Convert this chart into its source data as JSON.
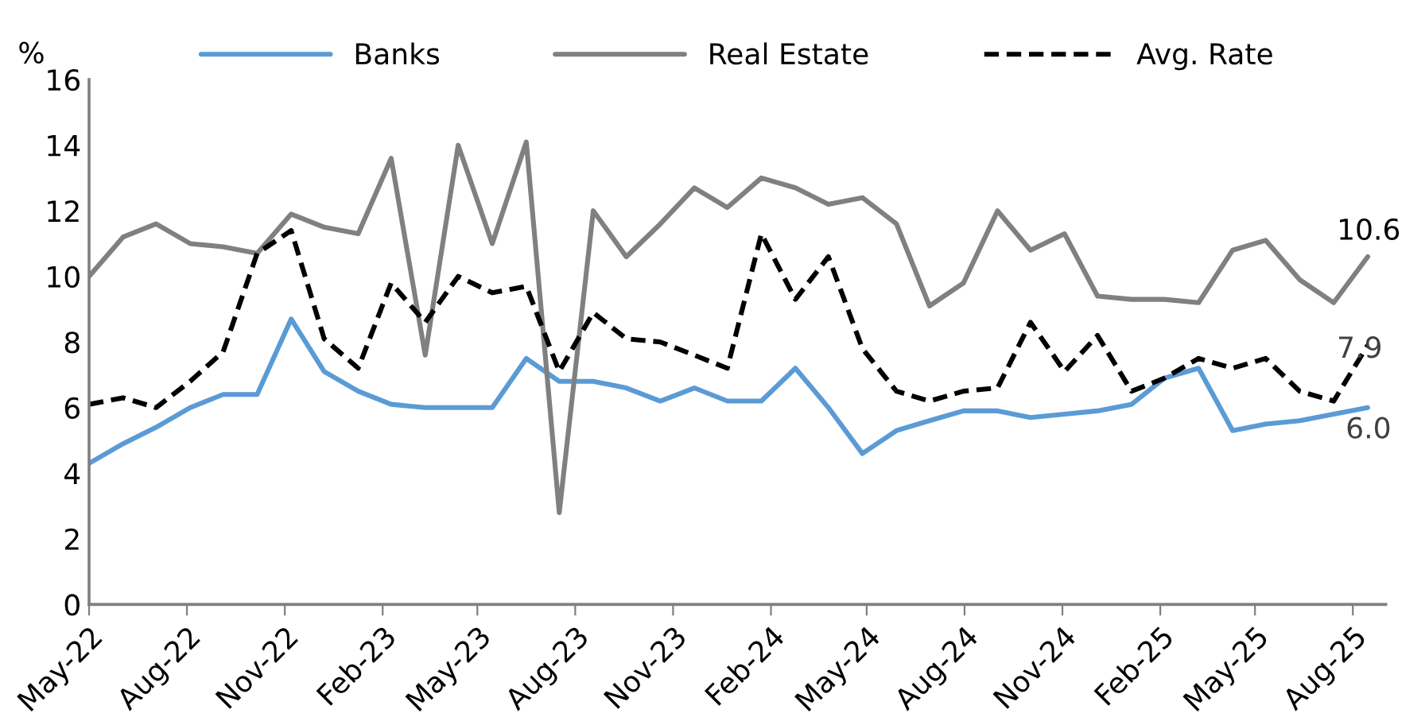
{
  "chart_data": {
    "type": "line",
    "ylabel": "%",
    "x": [
      "2022-05-01",
      "2022-06-02",
      "2022-07-03",
      "2022-08-04",
      "2022-09-04",
      "2022-10-06",
      "2022-11-07",
      "2022-12-08",
      "2023-01-09",
      "2023-02-09",
      "2023-03-13",
      "2023-04-13",
      "2023-05-15",
      "2023-06-16",
      "2023-07-17",
      "2023-08-18",
      "2023-09-18",
      "2023-10-20",
      "2023-11-21",
      "2023-12-22",
      "2024-01-23",
      "2024-02-24",
      "2024-03-26",
      "2024-04-27",
      "2024-05-29",
      "2024-06-29",
      "2024-07-31",
      "2024-09-01",
      "2024-10-02",
      "2024-11-03",
      "2024-12-04",
      "2025-01-05",
      "2025-02-05",
      "2025-03-09",
      "2025-04-10",
      "2025-05-11",
      "2025-06-12",
      "2025-07-14",
      "2025-08-15"
    ],
    "series": [
      {
        "name": "Banks",
        "color": "#5b9bd5",
        "line_style": "solid",
        "values": [
          4.3,
          4.9,
          5.4,
          6.0,
          6.4,
          6.4,
          8.7,
          7.1,
          6.5,
          6.1,
          6.0,
          6.0,
          6.0,
          7.5,
          6.8,
          6.8,
          6.6,
          6.2,
          6.6,
          6.2,
          6.2,
          7.2,
          6.0,
          4.6,
          5.3,
          5.6,
          5.9,
          5.9,
          5.7,
          5.8,
          5.9,
          6.1,
          6.9,
          7.2,
          5.3,
          5.5,
          5.6,
          5.8,
          6.0
        ]
      },
      {
        "name": "Real Estate",
        "color": "#808080",
        "line_style": "solid",
        "values": [
          10.0,
          11.2,
          11.6,
          11.0,
          10.9,
          10.7,
          11.9,
          11.5,
          11.3,
          13.6,
          7.6,
          14.0,
          11.0,
          14.1,
          2.8,
          12.0,
          10.6,
          11.6,
          12.7,
          12.1,
          13.0,
          12.7,
          12.2,
          12.4,
          11.6,
          9.1,
          9.8,
          12.0,
          10.8,
          11.3,
          9.4,
          9.3,
          9.3,
          9.2,
          10.8,
          11.1,
          9.9,
          9.2,
          10.6
        ]
      },
      {
        "name": "Avg. Rate",
        "color": "#000000",
        "line_style": "dashed",
        "values": [
          6.1,
          6.3,
          6.0,
          6.8,
          7.7,
          10.7,
          11.4,
          8.1,
          7.2,
          9.8,
          8.6,
          10.0,
          9.5,
          9.7,
          7.1,
          8.9,
          8.1,
          8.0,
          7.6,
          7.2,
          11.3,
          9.3,
          10.6,
          7.8,
          6.5,
          6.2,
          6.5,
          6.6,
          8.6,
          7.1,
          8.2,
          6.5,
          6.9,
          7.5,
          7.2,
          7.5,
          6.5,
          6.2,
          7.9
        ]
      }
    ],
    "xlim": [
      "2022-05-01",
      "2025-09-01"
    ],
    "xticks": [
      {
        "value": "2022-05-01",
        "label": "May-22"
      },
      {
        "value": "2022-08-01",
        "label": "Aug-22"
      },
      {
        "value": "2022-11-01",
        "label": "Nov-22"
      },
      {
        "value": "2023-02-01",
        "label": "Feb-23"
      },
      {
        "value": "2023-05-01",
        "label": "May-23"
      },
      {
        "value": "2023-08-01",
        "label": "Aug-23"
      },
      {
        "value": "2023-11-01",
        "label": "Nov-23"
      },
      {
        "value": "2024-02-01",
        "label": "Feb-24"
      },
      {
        "value": "2024-05-01",
        "label": "May-24"
      },
      {
        "value": "2024-08-01",
        "label": "Aug-24"
      },
      {
        "value": "2024-11-01",
        "label": "Nov-24"
      },
      {
        "value": "2025-02-01",
        "label": "Feb-25"
      },
      {
        "value": "2025-05-01",
        "label": "May-25"
      },
      {
        "value": "2025-08-01",
        "label": "Aug-25"
      }
    ],
    "ylim": [
      0,
      16
    ],
    "yticks": [
      0,
      2,
      4,
      6,
      8,
      10,
      12,
      14,
      16
    ],
    "grid": false,
    "legend": "top",
    "marker": "none",
    "annotations": [
      {
        "text": "10.6",
        "x": "2025-08-15",
        "y": 10.6
      },
      {
        "text": "7.9",
        "x": "2025-08-15",
        "y": 7.9
      },
      {
        "text": "6.0",
        "x": "2025-08-15",
        "y": 6.0
      }
    ]
  }
}
